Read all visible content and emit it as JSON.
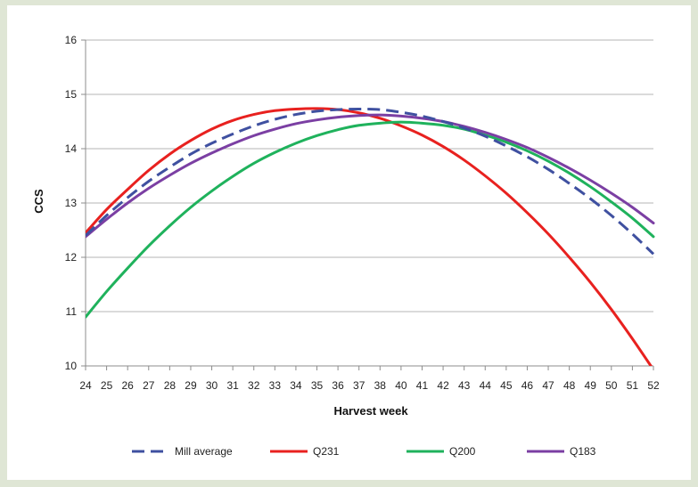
{
  "chart_data": {
    "type": "line",
    "xlabel": "Harvest week",
    "ylabel": "CCS",
    "ylim": [
      10,
      16
    ],
    "yticks": [
      "10",
      "11",
      "12",
      "13",
      "14",
      "15",
      "16"
    ],
    "categories": [
      "24",
      "25",
      "26",
      "27",
      "28",
      "29",
      "30",
      "31",
      "32",
      "33",
      "34",
      "35",
      "36",
      "37",
      "38",
      "40",
      "41",
      "42",
      "43",
      "44",
      "45",
      "46",
      "47",
      "48",
      "49",
      "50",
      "51",
      "52"
    ],
    "grid": true,
    "legend_position": "bottom",
    "series": [
      {
        "name": "Mill average",
        "color": "#3f50a0",
        "dash": true,
        "values": [
          12.4,
          12.77,
          13.1,
          13.4,
          13.66,
          13.9,
          14.1,
          14.27,
          14.42,
          14.54,
          14.63,
          14.69,
          14.72,
          14.73,
          14.72,
          14.67,
          14.6,
          14.5,
          14.38,
          14.23,
          14.05,
          13.85,
          13.62,
          13.36,
          13.08,
          12.77,
          12.43,
          12.06
        ]
      },
      {
        "name": "Q231",
        "color": "#e8211f",
        "dash": false,
        "values": [
          12.45,
          12.88,
          13.25,
          13.6,
          13.9,
          14.15,
          14.36,
          14.52,
          14.63,
          14.7,
          14.73,
          14.74,
          14.72,
          14.66,
          14.56,
          14.42,
          14.25,
          14.04,
          13.79,
          13.5,
          13.18,
          12.82,
          12.43,
          12.0,
          11.54,
          11.04,
          10.5,
          9.93
        ]
      },
      {
        "name": "Q200",
        "color": "#1fb25c",
        "dash": false,
        "values": [
          10.9,
          11.37,
          11.8,
          12.21,
          12.58,
          12.92,
          13.22,
          13.49,
          13.73,
          13.93,
          14.1,
          14.24,
          14.35,
          14.43,
          14.47,
          14.49,
          14.47,
          14.43,
          14.36,
          14.25,
          14.12,
          13.96,
          13.77,
          13.55,
          13.3,
          13.02,
          12.72,
          12.38
        ]
      },
      {
        "name": "Q183",
        "color": "#7b3fa3",
        "dash": false,
        "values": [
          12.38,
          12.7,
          13.0,
          13.27,
          13.51,
          13.73,
          13.92,
          14.09,
          14.24,
          14.36,
          14.46,
          14.53,
          14.58,
          14.61,
          14.62,
          14.6,
          14.56,
          14.5,
          14.41,
          14.3,
          14.17,
          14.02,
          13.84,
          13.64,
          13.42,
          13.18,
          12.92,
          12.63
        ]
      }
    ]
  }
}
